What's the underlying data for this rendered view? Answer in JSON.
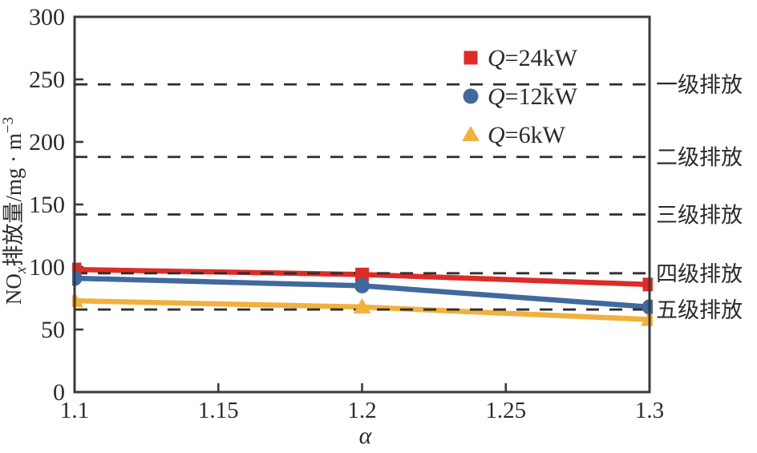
{
  "chart_data": {
    "type": "line",
    "title": "",
    "xlabel": "α",
    "ylabel": "NOx排放量/mg·m⁻³",
    "ylabel_parts": {
      "prefix": "NO",
      "subscript": "x",
      "middle": "排放量/mg · m",
      "superscript": "−3"
    },
    "x": [
      1.1,
      1.2,
      1.3
    ],
    "xlim": [
      1.1,
      1.3
    ],
    "ylim": [
      0,
      300
    ],
    "x_ticks": [
      1.1,
      1.15,
      1.2,
      1.25,
      1.3
    ],
    "x_tick_labels": [
      "1.1",
      "1.15",
      "1.2",
      "1.25",
      "1.3"
    ],
    "y_ticks": [
      0,
      50,
      100,
      150,
      200,
      250,
      300
    ],
    "y_tick_labels": [
      "0",
      "50",
      "100",
      "150",
      "200",
      "250",
      "300"
    ],
    "grid": false,
    "legend_position": "upper-center-inside",
    "series": [
      {
        "name": "Q=24kW",
        "label_q": "Q",
        "label_rest": "=24kW",
        "marker": "square",
        "color": "#dd2c27",
        "values": [
          98,
          94,
          86
        ]
      },
      {
        "name": "Q=12kW",
        "label_q": "Q",
        "label_rest": "=12kW",
        "marker": "circle",
        "color": "#40699e",
        "values": [
          91,
          85,
          68
        ]
      },
      {
        "name": "Q=6kW",
        "label_q": "Q",
        "label_rest": "=6kW",
        "marker": "triangle",
        "color": "#f2b03f",
        "values": [
          73,
          68,
          58
        ]
      }
    ],
    "reference_lines": [
      {
        "label": "一级排放",
        "value": 246
      },
      {
        "label": "二级排放",
        "value": 188
      },
      {
        "label": "三级排放",
        "value": 142
      },
      {
        "label": "四级排放",
        "value": 95
      },
      {
        "label": "五级排放",
        "value": 66
      }
    ],
    "colors": {
      "axis": "#3a3a3a",
      "dashed_line": "#2f2f2f",
      "text": "#2b2b2b"
    }
  }
}
